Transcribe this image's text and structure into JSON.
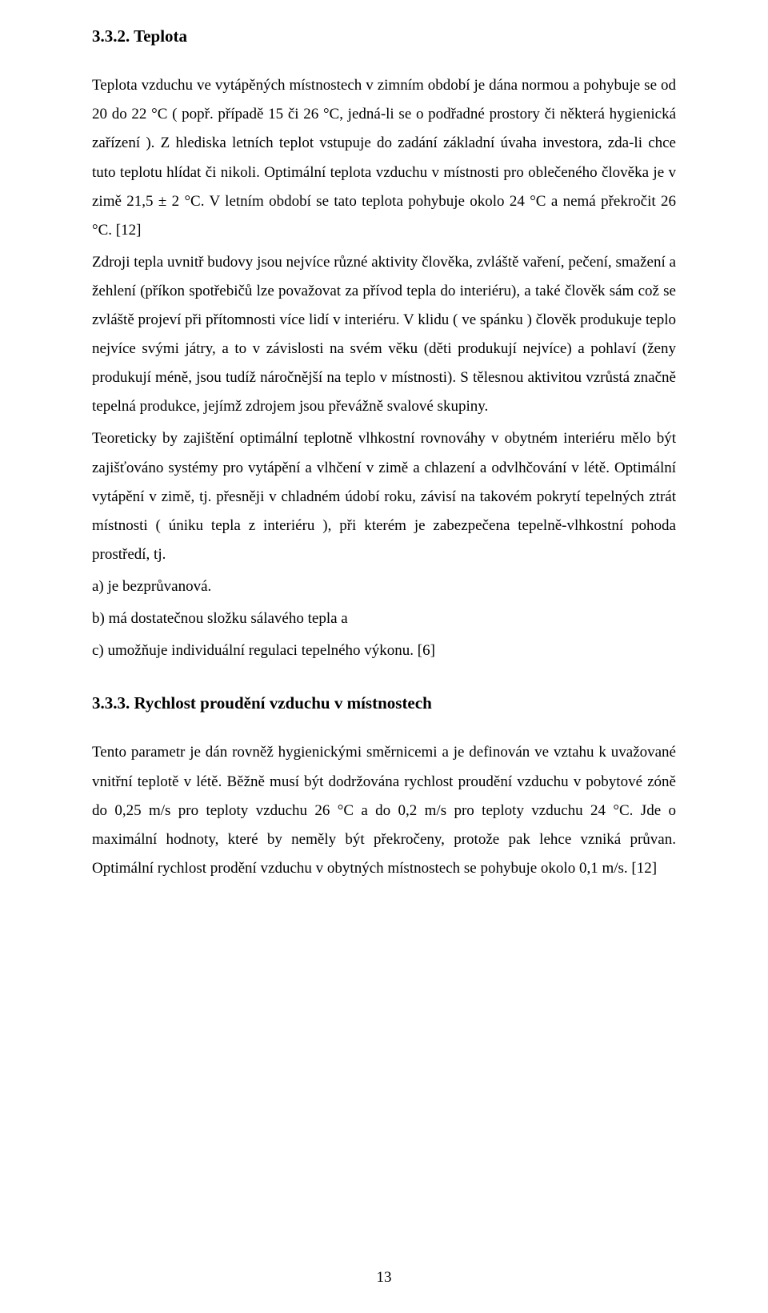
{
  "colors": {
    "text": "#000000",
    "background": "#ffffff"
  },
  "typography": {
    "body_font_family": "Times New Roman",
    "body_font_size_pt": 12,
    "heading_font_size_pt": 13,
    "heading_weight": "bold",
    "line_spacing": 1.9,
    "alignment": "justify"
  },
  "page_number": "13",
  "sections": [
    {
      "heading": "3.3.2. Teplota",
      "paragraphs": [
        "Teplota vzduchu ve vytápěných místnostech v zimním období je dána normou a pohybuje se od 20 do 22 °C ( popř. případě 15 či 26 °C, jedná-li se o podřadné prostory či některá hygienická zařízení ). Z hlediska letních teplot vstupuje do zadání základní úvaha investora, zda-li chce tuto teplotu hlídat či nikoli. Optimální teplota vzduchu v místnosti pro oblečeného člověka je v zimě 21,5 ± 2 °C. V letním období se tato teplota pohybuje okolo 24 °C a nemá překročit 26 °C. [12]",
        "Zdroji tepla uvnitř budovy jsou nejvíce různé aktivity člověka, zvláště vaření, pečení, smažení a žehlení (příkon spotřebičů lze považovat za přívod tepla do interiéru), a také člověk sám což se zvláště projeví při přítomnosti více lidí v interiéru. V klidu ( ve spánku ) člověk produkuje teplo nejvíce svými játry, a to v závislosti na svém věku (děti produkují nejvíce) a pohlaví (ženy produkují méně, jsou tudíž náročnější na teplo v místnosti). S tělesnou aktivitou vzrůstá značně tepelná produkce, jejímž zdrojem jsou převážně svalové skupiny.",
        "Teoreticky by zajištění optimální teplotně vlhkostní rovnováhy v obytném interiéru mělo být zajišťováno systémy pro vytápění a vlhčení v zimě a chlazení a odvlhčování v létě. Optimální vytápění v zimě, tj. přesněji v chladném údobí roku, závisí na takovém pokrytí tepelných ztrát místnosti ( úniku tepla z interiéru ), při kterém je zabezpečena tepelně-vlhkostní pohoda prostředí, tj."
      ],
      "list": [
        "a) je bezprůvanová.",
        "b) má dostatečnou složku sálavého tepla a",
        "c) umožňuje individuální regulaci tepelného výkonu. [6]"
      ]
    },
    {
      "heading": "3.3.3. Rychlost proudění vzduchu v místnostech",
      "paragraphs": [
        "Tento parametr je dán rovněž hygienickými směrnicemi a je definován ve vztahu k uvažované vnitřní teplotě v létě. Běžně musí být dodržována rychlost proudění vzduchu v pobytové zóně do 0,25 m/s pro teploty vzduchu 26 °C a do 0,2 m/s pro teploty vzduchu 24 °C. Jde o maximální hodnoty, které by neměly být překročeny, protože pak lehce vzniká průvan. Optimální rychlost prodění vzduchu v obytných místnostech se pohybuje okolo 0,1 m/s. [12]"
      ],
      "list": []
    }
  ]
}
